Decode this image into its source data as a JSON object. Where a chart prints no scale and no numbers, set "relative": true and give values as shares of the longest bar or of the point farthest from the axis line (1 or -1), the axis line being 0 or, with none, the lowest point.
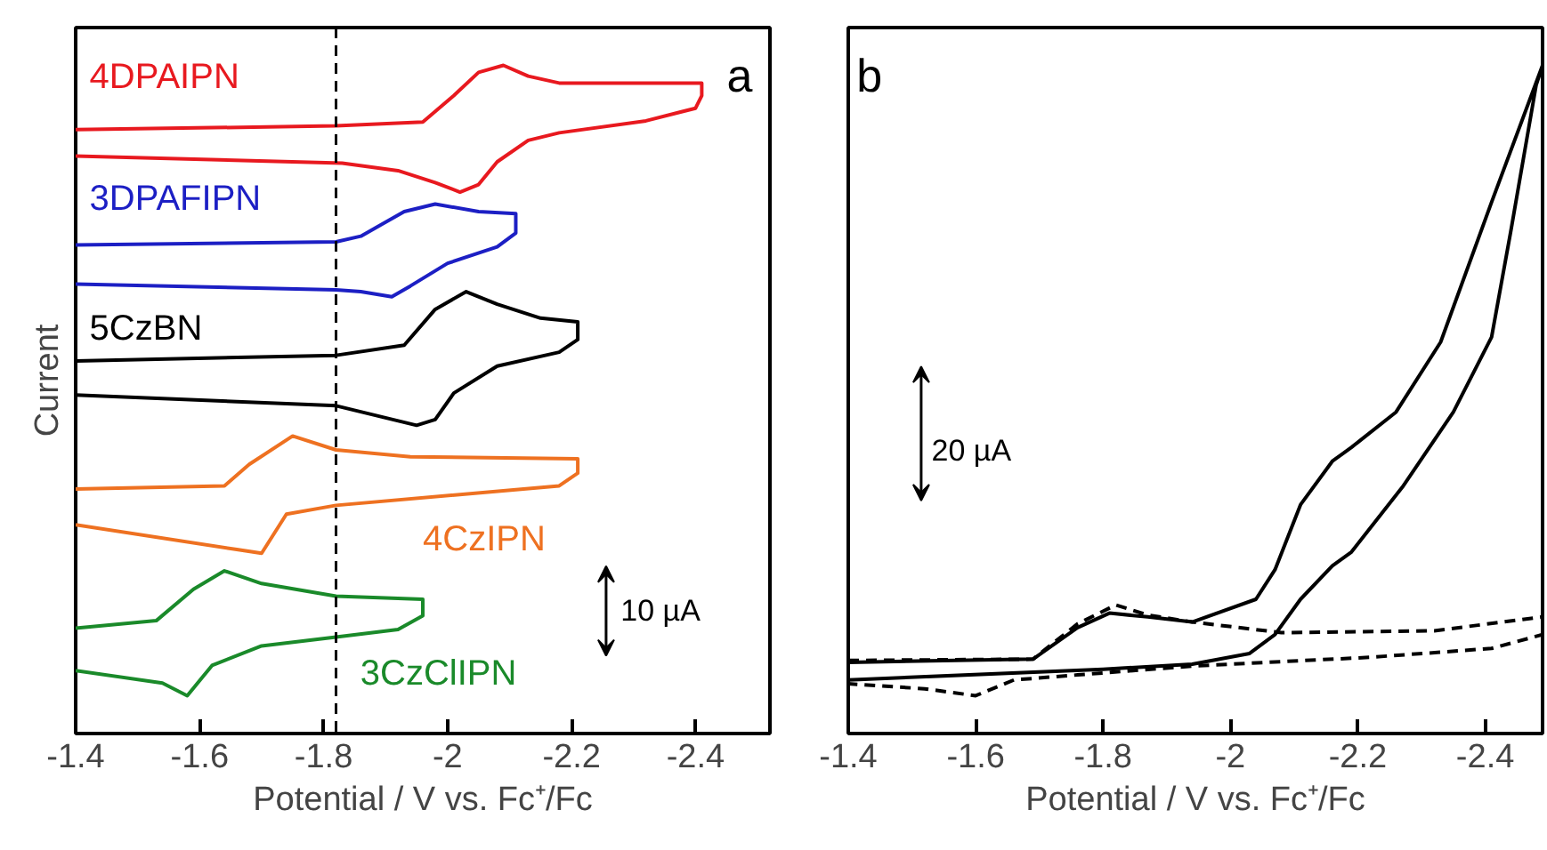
{
  "chart_data": [
    {
      "type": "line",
      "relative": true,
      "xlabel": "Potential / V vs. Fc⁺/Fc",
      "ylabel": "Current",
      "xlim": [
        -1.4,
        -2.52
      ],
      "xticks": [
        -1.4,
        -1.6,
        -1.8,
        -2,
        -2.2,
        -2.4
      ],
      "grid": false,
      "marker": "none",
      "line_style": "solid",
      "ref_lines": [
        {
          "axis": "x",
          "value": -1.82,
          "color": "#000000",
          "line_style": "dashed"
        }
      ],
      "annotations": [
        "a",
        "10 µA"
      ],
      "series": [
        {
          "name": "4DPAIPN",
          "color": "#e8191f",
          "x": [
            -1.4,
            -1.82,
            -1.96,
            -2.01,
            -2.05,
            -2.09,
            -2.13,
            -2.18,
            -2.41,
            -2.41,
            -2.4,
            -2.32,
            -2.18,
            -2.13,
            -2.08,
            -2.05,
            -2.02,
            -1.98,
            -1.92,
            -1.83,
            -1.4
          ],
          "values": [
            0.898,
            0.904,
            0.91,
            0.952,
            0.989,
            1.0,
            0.983,
            0.972,
            0.972,
            0.952,
            0.932,
            0.912,
            0.893,
            0.881,
            0.847,
            0.811,
            0.799,
            0.814,
            0.833,
            0.845,
            0.856
          ]
        },
        {
          "name": "3DPAFIPN",
          "color": "#1c1fc4",
          "x": [
            -1.4,
            -1.82,
            -1.86,
            -1.93,
            -1.98,
            -2.05,
            -2.11,
            -2.11,
            -2.08,
            -2.0,
            -1.94,
            -1.91,
            -1.86,
            -1.82,
            -1.4
          ],
          "values": [
            0.715,
            0.72,
            0.729,
            0.768,
            0.78,
            0.768,
            0.765,
            0.734,
            0.712,
            0.686,
            0.65,
            0.633,
            0.641,
            0.644,
            0.653
          ]
        },
        {
          "name": "5CzBN",
          "color": "#000000",
          "x": [
            -1.4,
            -1.82,
            -1.93,
            -1.98,
            -2.03,
            -2.08,
            -2.15,
            -2.21,
            -2.21,
            -2.18,
            -2.08,
            -2.01,
            -1.98,
            -1.95,
            -1.82,
            -1.4
          ],
          "values": [
            0.531,
            0.54,
            0.556,
            0.613,
            0.641,
            0.621,
            0.599,
            0.593,
            0.565,
            0.545,
            0.523,
            0.48,
            0.438,
            0.429,
            0.46,
            0.477
          ]
        },
        {
          "name": "4CzIPN",
          "color": "#ee7121",
          "x": [
            -1.4,
            -1.64,
            -1.68,
            -1.75,
            -1.82,
            -1.94,
            -2.21,
            -2.21,
            -2.18,
            -1.82,
            -1.74,
            -1.7,
            -1.66,
            -1.4
          ],
          "values": [
            0.328,
            0.333,
            0.367,
            0.412,
            0.39,
            0.379,
            0.376,
            0.353,
            0.333,
            0.302,
            0.288,
            0.226,
            0.232,
            0.271
          ]
        },
        {
          "name": "3CzClIPN",
          "color": "#1a8a2a",
          "x": [
            -1.4,
            -1.53,
            -1.59,
            -1.64,
            -1.7,
            -1.82,
            -1.96,
            -1.96,
            -1.92,
            -1.82,
            -1.7,
            -1.62,
            -1.58,
            -1.54,
            -1.4
          ],
          "values": [
            0.107,
            0.119,
            0.169,
            0.198,
            0.178,
            0.158,
            0.153,
            0.127,
            0.105,
            0.093,
            0.079,
            0.048,
            0.0,
            0.02,
            0.04
          ]
        }
      ]
    },
    {
      "type": "line",
      "relative": true,
      "xlabel": "Potential / V vs. Fc⁺/Fc",
      "xlim": [
        -1.4,
        -2.49
      ],
      "xticks": [
        -1.4,
        -1.6,
        -1.8,
        -2,
        -2.2,
        -2.4
      ],
      "grid": false,
      "marker": "none",
      "annotations": [
        "b",
        "20 µA"
      ],
      "series": [
        {
          "color": "#000000",
          "line_style": "solid",
          "x": [
            -1.4,
            -1.69,
            -1.76,
            -1.81,
            -1.87,
            -1.94,
            -2.04,
            -2.07,
            -2.11,
            -2.16,
            -2.19,
            -2.26,
            -2.33,
            -2.41,
            -2.49,
            -2.48,
            -2.44,
            -2.41,
            -2.35,
            -2.27,
            -2.19,
            -2.16,
            -2.11,
            -2.07,
            -2.03,
            -1.94,
            -1.8,
            -1.4
          ],
          "values": [
            0.053,
            0.058,
            0.108,
            0.131,
            0.125,
            0.117,
            0.153,
            0.2,
            0.303,
            0.372,
            0.394,
            0.45,
            0.561,
            0.783,
            1.0,
            0.969,
            0.736,
            0.569,
            0.45,
            0.331,
            0.228,
            0.206,
            0.153,
            0.097,
            0.067,
            0.05,
            0.042,
            0.025
          ]
        },
        {
          "color": "#000000",
          "line_style": "dashed",
          "x": [
            -1.4,
            -1.69,
            -1.76,
            -1.82,
            -1.87,
            -1.94,
            -2.08,
            -2.32,
            -2.49,
            -2.49,
            -2.41,
            -2.22,
            -1.94,
            -1.76,
            -1.66,
            -1.6,
            -1.52,
            -1.4
          ],
          "values": [
            0.056,
            0.058,
            0.114,
            0.144,
            0.128,
            0.117,
            0.1,
            0.103,
            0.125,
            0.097,
            0.075,
            0.061,
            0.047,
            0.033,
            0.025,
            0.0,
            0.011,
            0.019
          ]
        }
      ]
    }
  ]
}
